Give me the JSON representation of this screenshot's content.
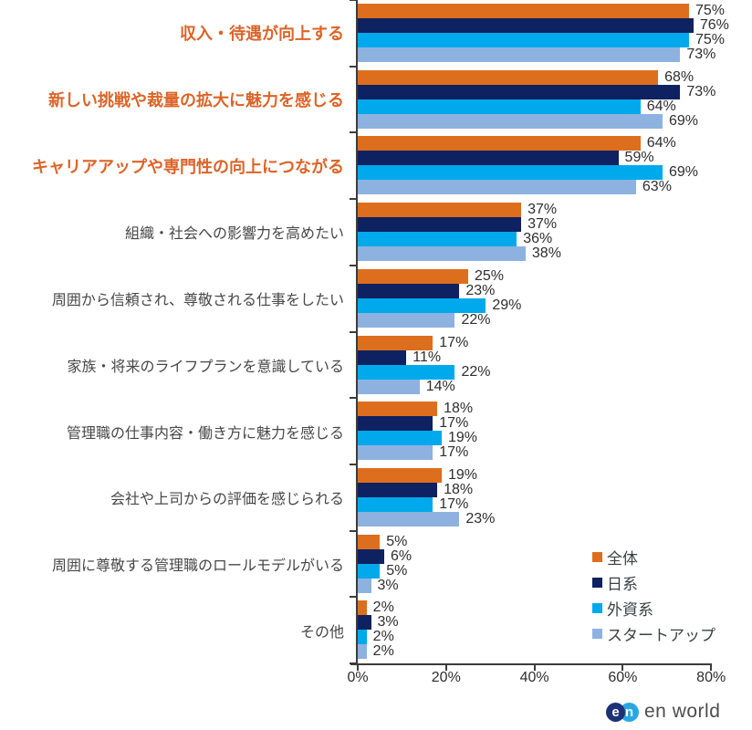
{
  "chart_data": {
    "type": "bar",
    "orientation": "horizontal",
    "value_unit": "%",
    "xlim": [
      0,
      80
    ],
    "x_ticks": [
      "0%",
      "20%",
      "40%",
      "60%",
      "80%"
    ],
    "grid": false,
    "legend_position": "bottom-right",
    "categories": [
      {
        "label": "収入・待遇が向上する",
        "emphasized": true
      },
      {
        "label": "新しい挑戦や裁量の拡大に魅力を感じる",
        "emphasized": true
      },
      {
        "label": "キャリアアップや専門性の向上につながる",
        "emphasized": true
      },
      {
        "label": "組織・社会への影響力を高めたい",
        "emphasized": false
      },
      {
        "label": "周囲から信頼され、尊敬される仕事をしたい",
        "emphasized": false
      },
      {
        "label": "家族・将来のライフプランを意識している",
        "emphasized": false
      },
      {
        "label": "管理職の仕事内容・働き方に魅力を感じる",
        "emphasized": false
      },
      {
        "label": "会社や上司からの評価を感じられる",
        "emphasized": false
      },
      {
        "label": "周囲に尊敬する管理職のロールモデルがいる",
        "emphasized": false
      },
      {
        "label": "その他",
        "emphasized": false
      }
    ],
    "series": [
      {
        "name": "全体",
        "color": "#DD6E1E",
        "values": [
          75,
          68,
          64,
          37,
          25,
          17,
          18,
          19,
          5,
          2
        ]
      },
      {
        "name": "日系",
        "color": "#0E2160",
        "values": [
          76,
          73,
          59,
          37,
          23,
          11,
          17,
          18,
          6,
          3
        ]
      },
      {
        "name": "外資系",
        "color": "#00A9EB",
        "values": [
          75,
          64,
          69,
          36,
          29,
          22,
          19,
          17,
          5,
          2
        ]
      },
      {
        "name": "スタートアップ",
        "color": "#8EB2E0",
        "values": [
          73,
          69,
          63,
          38,
          22,
          14,
          17,
          23,
          3,
          2
        ]
      }
    ]
  },
  "styles": {
    "emphasis_color": "#DC6428",
    "label_color": "#474747",
    "value_color": "#2E2E2E",
    "axis_color": "#3C3C3C"
  },
  "logo": {
    "mark_left": "e",
    "mark_left_color": "#1D3176",
    "mark_right": "n",
    "mark_right_color": "#29A7E3",
    "text": "en world"
  }
}
